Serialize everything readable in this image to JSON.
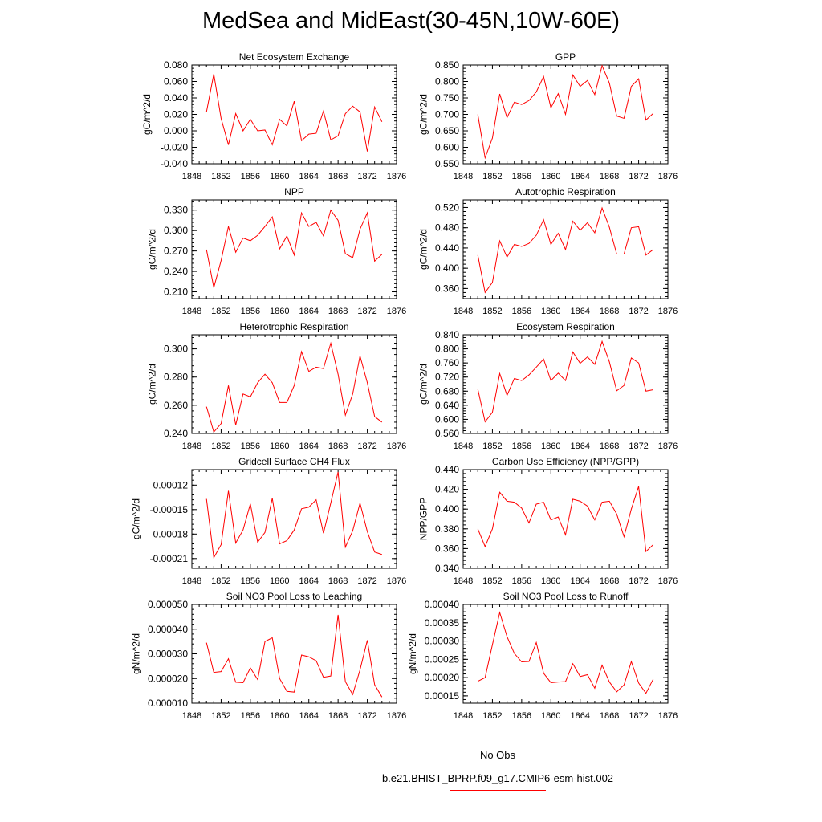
{
  "title": "MedSea and MidEast(30-45N,10W-60E)",
  "colors": {
    "model_line": "#ff0000",
    "obs_line": "#6666ee",
    "axis": "#000000"
  },
  "legend": {
    "obs_label": "No Obs",
    "model_label": "b.e21.BHIST_BPRP.f09_g17.CMIP6-esm-hist.002"
  },
  "chart_data": [
    {
      "type": "line",
      "title": "Net Ecosystem Exchange",
      "ylabel": "gC/m^2/d",
      "xlim": [
        1848,
        1876
      ],
      "ylim": [
        -0.04,
        0.08
      ],
      "xticks": [
        "1848",
        "1852",
        "1856",
        "1860",
        "1864",
        "1868",
        "1872",
        "1876"
      ],
      "yticks": [
        -0.04,
        -0.02,
        0.0,
        0.02,
        0.04,
        0.06,
        0.08
      ],
      "ytick_labels": [
        "-0.040",
        "-0.020",
        "0.000",
        "0.020",
        "0.040",
        "0.060",
        "0.080"
      ],
      "x": [
        1850,
        1851,
        1852,
        1853,
        1854,
        1855,
        1856,
        1857,
        1858,
        1859,
        1860,
        1861,
        1862,
        1863,
        1864,
        1865,
        1866,
        1867,
        1868,
        1869,
        1870,
        1871,
        1872,
        1873,
        1874
      ],
      "series": [
        {
          "values": [
            0.023,
            0.069,
            0.015,
            -0.017,
            0.021,
            0.0,
            0.014,
            0.0,
            0.001,
            -0.017,
            0.014,
            0.006,
            0.036,
            -0.012,
            -0.004,
            -0.003,
            0.024,
            -0.011,
            -0.006,
            0.021,
            0.03,
            0.023,
            -0.025,
            0.029,
            0.011
          ]
        }
      ]
    },
    {
      "type": "line",
      "title": "GPP",
      "ylabel": "gC/m^2/d",
      "xlim": [
        1848,
        1876
      ],
      "ylim": [
        0.55,
        0.85
      ],
      "xticks": [
        "1848",
        "1852",
        "1856",
        "1860",
        "1864",
        "1868",
        "1872",
        "1876"
      ],
      "yticks": [
        0.55,
        0.6,
        0.65,
        0.7,
        0.75,
        0.8,
        0.85
      ],
      "ytick_labels": [
        "0.550",
        "0.600",
        "0.650",
        "0.700",
        "0.750",
        "0.800",
        "0.850"
      ],
      "x": [
        1850,
        1851,
        1852,
        1853,
        1854,
        1855,
        1856,
        1857,
        1858,
        1859,
        1860,
        1861,
        1862,
        1863,
        1864,
        1865,
        1866,
        1867,
        1868,
        1869,
        1870,
        1871,
        1872,
        1873,
        1874
      ],
      "series": [
        {
          "values": [
            0.7,
            0.568,
            0.628,
            0.762,
            0.69,
            0.737,
            0.73,
            0.742,
            0.768,
            0.815,
            0.72,
            0.763,
            0.7,
            0.82,
            0.785,
            0.803,
            0.76,
            0.848,
            0.795,
            0.695,
            0.688,
            0.785,
            0.808,
            0.683,
            0.703
          ]
        }
      ]
    },
    {
      "type": "line",
      "title": "NPP",
      "ylabel": "gC/m^2/d",
      "xlim": [
        1848,
        1876
      ],
      "ylim": [
        0.2,
        0.345
      ],
      "xticks": [
        "1848",
        "1852",
        "1856",
        "1860",
        "1864",
        "1868",
        "1872",
        "1876"
      ],
      "yticks": [
        0.21,
        0.24,
        0.27,
        0.3,
        0.33
      ],
      "ytick_labels": [
        "0.210",
        "0.240",
        "0.270",
        "0.300",
        "0.330"
      ],
      "x": [
        1850,
        1851,
        1852,
        1853,
        1854,
        1855,
        1856,
        1857,
        1858,
        1859,
        1860,
        1861,
        1862,
        1863,
        1864,
        1865,
        1866,
        1867,
        1868,
        1869,
        1870,
        1871,
        1872,
        1873,
        1874
      ],
      "series": [
        {
          "values": [
            0.272,
            0.216,
            0.256,
            0.306,
            0.268,
            0.289,
            0.285,
            0.293,
            0.306,
            0.32,
            0.273,
            0.292,
            0.264,
            0.326,
            0.306,
            0.312,
            0.292,
            0.33,
            0.315,
            0.266,
            0.26,
            0.302,
            0.326,
            0.255,
            0.265
          ]
        }
      ]
    },
    {
      "type": "line",
      "title": "Autotrophic Respiration",
      "ylabel": "gC/m^2/d",
      "xlim": [
        1848,
        1876
      ],
      "ylim": [
        0.34,
        0.535
      ],
      "xticks": [
        "1848",
        "1852",
        "1856",
        "1860",
        "1864",
        "1868",
        "1872",
        "1876"
      ],
      "yticks": [
        0.36,
        0.4,
        0.44,
        0.48,
        0.52
      ],
      "ytick_labels": [
        "0.360",
        "0.400",
        "0.440",
        "0.480",
        "0.520"
      ],
      "x": [
        1850,
        1851,
        1852,
        1853,
        1854,
        1855,
        1856,
        1857,
        1858,
        1859,
        1860,
        1861,
        1862,
        1863,
        1864,
        1865,
        1866,
        1867,
        1868,
        1869,
        1870,
        1871,
        1872,
        1873,
        1874
      ],
      "series": [
        {
          "values": [
            0.426,
            0.352,
            0.372,
            0.454,
            0.422,
            0.447,
            0.443,
            0.449,
            0.465,
            0.496,
            0.447,
            0.469,
            0.437,
            0.493,
            0.475,
            0.49,
            0.47,
            0.519,
            0.481,
            0.428,
            0.428,
            0.48,
            0.482,
            0.426,
            0.437
          ]
        }
      ]
    },
    {
      "type": "line",
      "title": "Heterotrophic Respiration",
      "ylabel": "gC/m^2/d",
      "xlim": [
        1848,
        1876
      ],
      "ylim": [
        0.24,
        0.31
      ],
      "xticks": [
        "1848",
        "1852",
        "1856",
        "1860",
        "1864",
        "1868",
        "1872",
        "1876"
      ],
      "yticks": [
        0.24,
        0.26,
        0.28,
        0.3
      ],
      "ytick_labels": [
        "0.240",
        "0.260",
        "0.280",
        "0.300"
      ],
      "x": [
        1850,
        1851,
        1852,
        1853,
        1854,
        1855,
        1856,
        1857,
        1858,
        1859,
        1860,
        1861,
        1862,
        1863,
        1864,
        1865,
        1866,
        1867,
        1868,
        1869,
        1870,
        1871,
        1872,
        1873,
        1874
      ],
      "series": [
        {
          "values": [
            0.259,
            0.241,
            0.247,
            0.274,
            0.246,
            0.268,
            0.266,
            0.276,
            0.282,
            0.276,
            0.262,
            0.262,
            0.274,
            0.298,
            0.284,
            0.287,
            0.286,
            0.304,
            0.282,
            0.253,
            0.268,
            0.295,
            0.276,
            0.252,
            0.248
          ]
        }
      ]
    },
    {
      "type": "line",
      "title": "Ecosystem Respiration",
      "ylabel": "gC/m^2/d",
      "xlim": [
        1848,
        1876
      ],
      "ylim": [
        0.56,
        0.84
      ],
      "xticks": [
        "1848",
        "1852",
        "1856",
        "1860",
        "1864",
        "1868",
        "1872",
        "1876"
      ],
      "yticks": [
        0.56,
        0.6,
        0.64,
        0.68,
        0.72,
        0.76,
        0.8,
        0.84
      ],
      "ytick_labels": [
        "0.560",
        "0.600",
        "0.640",
        "0.680",
        "0.720",
        "0.760",
        "0.800",
        "0.840"
      ],
      "x": [
        1850,
        1851,
        1852,
        1853,
        1854,
        1855,
        1856,
        1857,
        1858,
        1859,
        1860,
        1861,
        1862,
        1863,
        1864,
        1865,
        1866,
        1867,
        1868,
        1869,
        1870,
        1871,
        1872,
        1873,
        1874
      ],
      "series": [
        {
          "values": [
            0.686,
            0.593,
            0.62,
            0.73,
            0.668,
            0.716,
            0.71,
            0.726,
            0.748,
            0.771,
            0.71,
            0.731,
            0.71,
            0.791,
            0.759,
            0.777,
            0.756,
            0.821,
            0.763,
            0.681,
            0.696,
            0.774,
            0.76,
            0.68,
            0.684
          ]
        }
      ]
    },
    {
      "type": "line",
      "title": "Gridcell Surface CH4 Flux",
      "ylabel": "gC/m^2/d",
      "xlim": [
        1848,
        1876
      ],
      "ylim": [
        -0.000222,
        -0.000101
      ],
      "xticks": [
        "1848",
        "1852",
        "1856",
        "1860",
        "1864",
        "1868",
        "1872",
        "1876"
      ],
      "yticks": [
        -0.00021,
        -0.00018,
        -0.00015,
        -0.00012
      ],
      "ytick_labels": [
        "-0.00021",
        "-0.00018",
        "-0.00015",
        "-0.00012"
      ],
      "x": [
        1850,
        1851,
        1852,
        1853,
        1854,
        1855,
        1856,
        1857,
        1858,
        1859,
        1860,
        1861,
        1862,
        1863,
        1864,
        1865,
        1866,
        1867,
        1868,
        1869,
        1870,
        1871,
        1872,
        1873,
        1874
      ],
      "series": [
        {
          "values": [
            -0.000137,
            -0.000209,
            -0.000193,
            -0.000127,
            -0.000191,
            -0.000175,
            -0.000143,
            -0.00019,
            -0.000178,
            -0.000136,
            -0.000192,
            -0.000188,
            -0.000175,
            -0.000149,
            -0.000147,
            -0.000138,
            -0.000179,
            -0.000142,
            -0.000104,
            -0.000196,
            -0.000176,
            -0.000142,
            -0.000177,
            -0.000202,
            -0.000205
          ]
        }
      ]
    },
    {
      "type": "line",
      "title": "Carbon Use Efficiency (NPP/GPP)",
      "ylabel": "NPP/GPP",
      "xlim": [
        1848,
        1876
      ],
      "ylim": [
        0.34,
        0.44
      ],
      "xticks": [
        "1848",
        "1852",
        "1856",
        "1860",
        "1864",
        "1868",
        "1872",
        "1876"
      ],
      "yticks": [
        0.34,
        0.36,
        0.38,
        0.4,
        0.42,
        0.44
      ],
      "ytick_labels": [
        "0.340",
        "0.360",
        "0.380",
        "0.400",
        "0.420",
        "0.440"
      ],
      "x": [
        1850,
        1851,
        1852,
        1853,
        1854,
        1855,
        1856,
        1857,
        1858,
        1859,
        1860,
        1861,
        1862,
        1863,
        1864,
        1865,
        1866,
        1867,
        1868,
        1869,
        1870,
        1871,
        1872,
        1873,
        1874
      ],
      "series": [
        {
          "values": [
            0.38,
            0.362,
            0.38,
            0.417,
            0.408,
            0.407,
            0.401,
            0.386,
            0.405,
            0.407,
            0.389,
            0.392,
            0.374,
            0.41,
            0.408,
            0.403,
            0.389,
            0.407,
            0.408,
            0.395,
            0.372,
            0.4,
            0.423,
            0.357,
            0.364
          ]
        }
      ]
    },
    {
      "type": "line",
      "title": "Soil NO3 Pool Loss to Leaching",
      "ylabel": "gN/m^2/d",
      "xlim": [
        1848,
        1876
      ],
      "ylim": [
        1e-05,
        5e-05
      ],
      "xticks": [
        "1848",
        "1852",
        "1856",
        "1860",
        "1864",
        "1868",
        "1872",
        "1876"
      ],
      "yticks": [
        1e-05,
        2e-05,
        3e-05,
        4e-05,
        5e-05
      ],
      "ytick_labels": [
        "0.000010",
        "0.000020",
        "0.000030",
        "0.000040",
        "0.000050"
      ],
      "x": [
        1850,
        1851,
        1852,
        1853,
        1854,
        1855,
        1856,
        1857,
        1858,
        1859,
        1860,
        1861,
        1862,
        1863,
        1864,
        1865,
        1866,
        1867,
        1868,
        1869,
        1870,
        1871,
        1872,
        1873,
        1874
      ],
      "series": [
        {
          "values": [
            3.45e-05,
            2.25e-05,
            2.28e-05,
            2.8e-05,
            1.85e-05,
            1.83e-05,
            2.43e-05,
            1.96e-05,
            3.5e-05,
            3.65e-05,
            2e-05,
            1.48e-05,
            1.45e-05,
            2.95e-05,
            2.88e-05,
            2.72e-05,
            2.05e-05,
            2.1e-05,
            4.58e-05,
            1.87e-05,
            1.35e-05,
            2.35e-05,
            3.55e-05,
            1.75e-05,
            1.25e-05
          ]
        }
      ]
    },
    {
      "type": "line",
      "title": "Soil NO3 Pool Loss to Runoff",
      "ylabel": "gN/m^2/d",
      "xlim": [
        1848,
        1876
      ],
      "ylim": [
        0.00013,
        0.0004
      ],
      "xticks": [
        "1848",
        "1852",
        "1856",
        "1860",
        "1864",
        "1868",
        "1872",
        "1876"
      ],
      "yticks": [
        0.00015,
        0.0002,
        0.00025,
        0.0003,
        0.00035,
        0.0004
      ],
      "ytick_labels": [
        "0.00015",
        "0.00020",
        "0.00025",
        "0.00030",
        "0.00035",
        "0.00040"
      ],
      "x": [
        1850,
        1851,
        1852,
        1853,
        1854,
        1855,
        1856,
        1857,
        1858,
        1859,
        1860,
        1861,
        1862,
        1863,
        1864,
        1865,
        1866,
        1867,
        1868,
        1869,
        1870,
        1871,
        1872,
        1873,
        1874
      ],
      "series": [
        {
          "values": [
            0.00019,
            0.0002,
            0.00029,
            0.000378,
            0.000312,
            0.000266,
            0.000243,
            0.000244,
            0.000296,
            0.000212,
            0.000186,
            0.000188,
            0.000189,
            0.000238,
            0.000203,
            0.000208,
            0.000171,
            0.000234,
            0.000188,
            0.000161,
            0.00018,
            0.000244,
            0.000185,
            0.000157,
            0.000196
          ]
        }
      ]
    }
  ]
}
